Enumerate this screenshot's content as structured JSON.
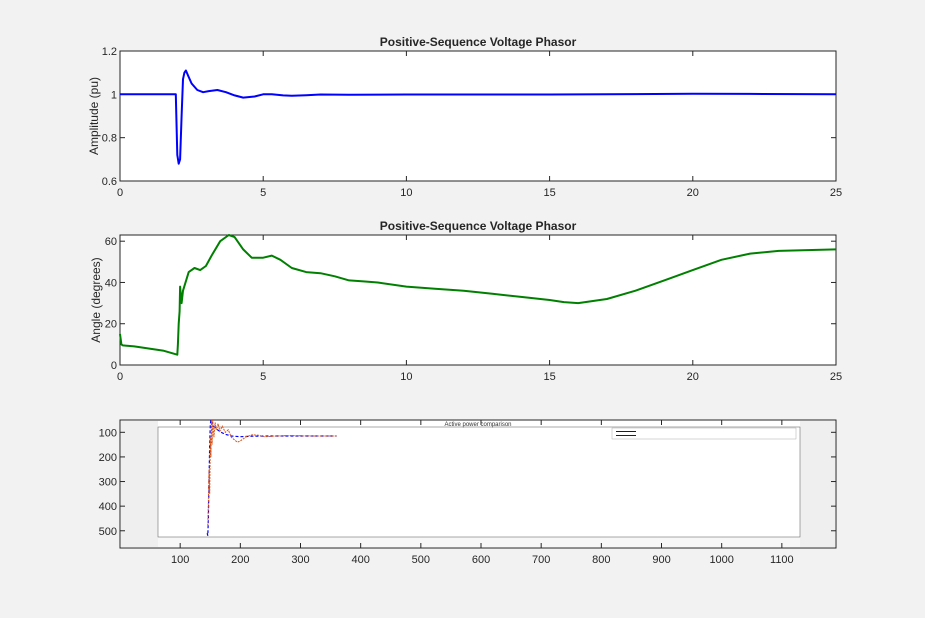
{
  "chart_data": [
    {
      "type": "line",
      "title": "Positive-Sequence Voltage Phasor",
      "xlabel": "",
      "ylabel": "Amplitude (pu)",
      "xlim": [
        0,
        25
      ],
      "ylim": [
        0.6,
        1.2
      ],
      "xticks": [
        0,
        5,
        10,
        15,
        20,
        25
      ],
      "yticks": [
        0.6,
        0.8,
        1,
        1.2
      ],
      "grid": false,
      "color": "#0000ff",
      "series": [
        {
          "x": [
            0,
            1.9,
            1.95,
            2.0,
            2.05,
            2.1,
            2.15,
            2.2,
            2.25,
            2.3,
            2.4,
            2.5,
            2.7,
            2.9,
            3.1,
            3.4,
            3.7,
            4.0,
            4.3,
            4.7,
            5.0,
            5.3,
            5.7,
            6.0,
            6.5,
            7.0,
            8.0,
            10.0,
            15.0,
            18.0,
            20.0,
            22.0,
            25.0
          ],
          "y": [
            1.0,
            1.0,
            1.0,
            0.72,
            0.68,
            0.7,
            0.9,
            1.07,
            1.1,
            1.11,
            1.08,
            1.05,
            1.02,
            1.01,
            1.015,
            1.02,
            1.01,
            0.995,
            0.985,
            0.99,
            1.0,
            1.0,
            0.995,
            0.993,
            0.996,
            0.999,
            0.998,
            0.999,
            0.999,
            1.001,
            1.003,
            1.002,
            1.0
          ]
        }
      ]
    },
    {
      "type": "line",
      "title": "Positive-Sequence Voltage Phasor",
      "xlabel": "",
      "ylabel": "Angle (degrees)",
      "xlim": [
        0,
        25
      ],
      "ylim": [
        0,
        63
      ],
      "xticks": [
        0,
        5,
        10,
        15,
        20,
        25
      ],
      "yticks": [
        0,
        20,
        40,
        60
      ],
      "grid": false,
      "color": "#008000",
      "series": [
        {
          "x": [
            0,
            0.05,
            0.1,
            0.5,
            1.0,
            1.5,
            2.0,
            2.02,
            2.05,
            2.08,
            2.1,
            2.15,
            2.2,
            2.4,
            2.6,
            2.8,
            3.0,
            3.2,
            3.5,
            3.8,
            4.0,
            4.3,
            4.6,
            5.0,
            5.3,
            5.6,
            6.0,
            6.5,
            7.0,
            7.5,
            8.0,
            8.5,
            9.0,
            10.0,
            11.0,
            12.0,
            13.0,
            14.0,
            15.0,
            15.5,
            16.0,
            17.0,
            18.0,
            19.0,
            20.0,
            21.0,
            22.0,
            23.0,
            24.0,
            25.0
          ],
          "y": [
            15,
            10,
            9.5,
            9,
            8,
            7,
            5,
            10,
            20,
            26,
            38,
            30,
            36,
            45,
            47,
            46,
            48,
            53,
            60,
            63,
            62,
            56,
            52,
            52,
            53,
            51,
            47,
            45,
            44.5,
            43,
            41,
            40.5,
            40,
            38,
            37,
            36,
            34.5,
            33,
            31.5,
            30.5,
            30,
            32,
            36,
            41,
            46,
            51,
            54,
            55.3,
            55.7,
            56
          ]
        }
      ]
    },
    {
      "type": "line",
      "title": "Active power comparison",
      "xlabel": "",
      "ylabel": "",
      "xlim": [
        0,
        1190
      ],
      "ylim": [
        570,
        50
      ],
      "xticks": [
        100,
        200,
        300,
        400,
        500,
        600,
        700,
        800,
        900,
        1000,
        1100
      ],
      "yticks": [
        100,
        200,
        300,
        400,
        500
      ],
      "grid": false,
      "legend": "top-right",
      "series": [
        {
          "color": "#0000ff",
          "x": [
            145,
            146,
            147,
            148,
            149,
            150,
            151,
            153,
            155,
            158,
            162,
            168,
            175,
            185,
            200,
            220,
            250,
            280,
            320,
            360
          ],
          "y": [
            510,
            520,
            450,
            300,
            150,
            70,
            50,
            60,
            75,
            80,
            90,
            100,
            108,
            115,
            118,
            116,
            115,
            115,
            115,
            115
          ]
        },
        {
          "color": "#d95319",
          "x": [
            146,
            147,
            148,
            149,
            150,
            151,
            152,
            153,
            154,
            156,
            158,
            160,
            163,
            166,
            170,
            175,
            180,
            185,
            190,
            195,
            200,
            210,
            220,
            230,
            240,
            260,
            280,
            300,
            330,
            360
          ],
          "y": [
            480,
            380,
            250,
            350,
            120,
            200,
            55,
            150,
            50,
            120,
            60,
            90,
            65,
            95,
            75,
            100,
            90,
            120,
            130,
            140,
            135,
            118,
            110,
            112,
            118,
            115,
            113,
            114,
            115,
            115
          ]
        }
      ]
    }
  ]
}
